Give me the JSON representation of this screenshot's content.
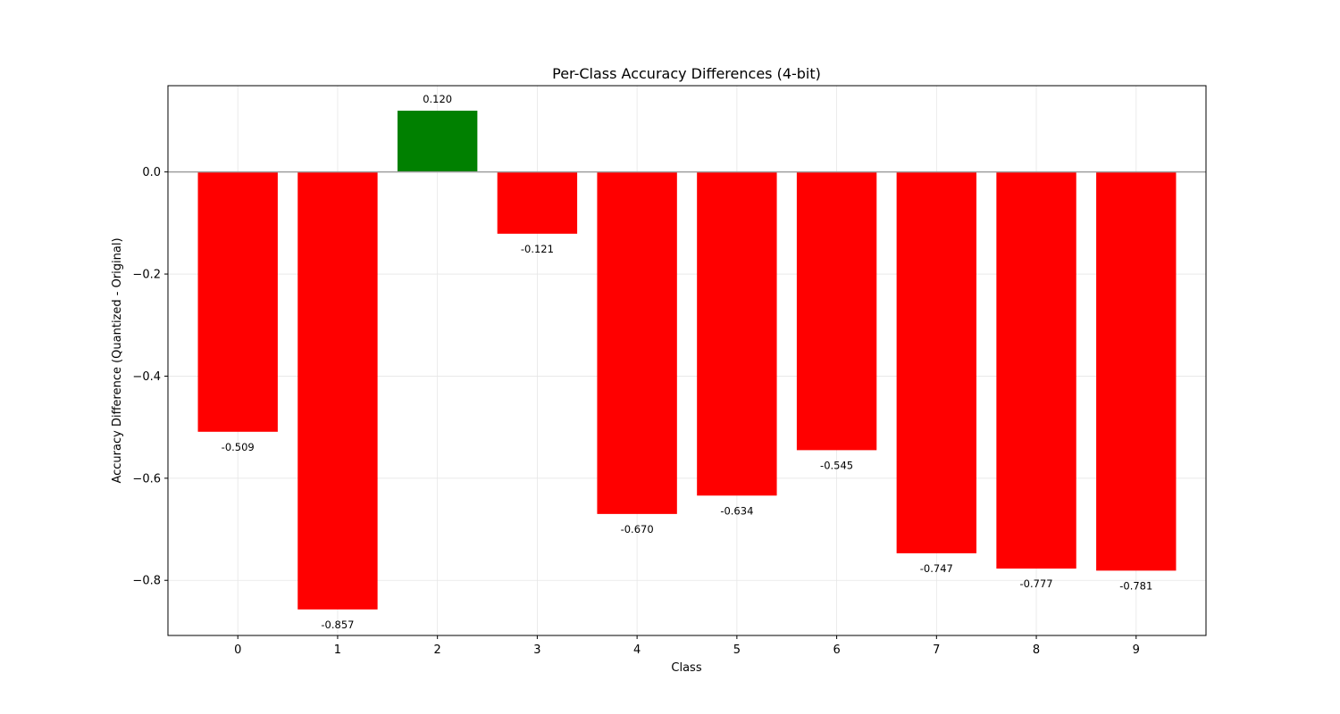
{
  "chart_data": {
    "type": "bar",
    "title": "Per-Class Accuracy Differences (4-bit)",
    "xlabel": "Class",
    "ylabel": "Accuracy Difference (Quantized - Original)",
    "categories": [
      "0",
      "1",
      "2",
      "3",
      "4",
      "5",
      "6",
      "7",
      "8",
      "9"
    ],
    "values": [
      -0.509,
      -0.857,
      0.12,
      -0.121,
      -0.67,
      -0.634,
      -0.545,
      -0.747,
      -0.777,
      -0.781
    ],
    "value_labels": [
      "-0.509",
      "-0.857",
      "0.120",
      "-0.121",
      "-0.670",
      "-0.634",
      "-0.545",
      "-0.747",
      "-0.777",
      "-0.781"
    ],
    "ylim": [
      -0.908,
      0.169
    ],
    "yticks": [
      0.0,
      -0.2,
      -0.4,
      -0.6,
      -0.8
    ],
    "ytick_labels": [
      "0.0",
      "−0.2",
      "−0.4",
      "−0.6",
      "−0.8"
    ],
    "grid": true,
    "zero_line": true,
    "colors": {
      "positive": "#008000",
      "negative": "#ff0000",
      "zero_line": "#9e9e9e",
      "grid": "#e6e6e6"
    }
  }
}
